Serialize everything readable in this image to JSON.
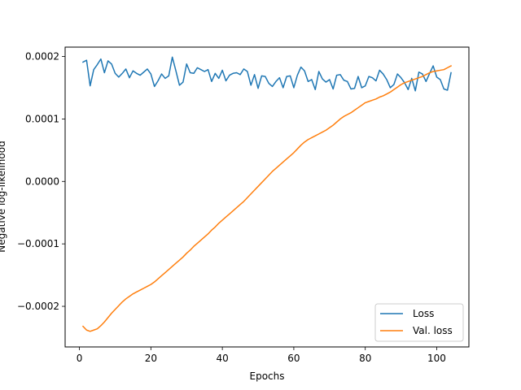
{
  "chart_data": {
    "type": "line",
    "title": "",
    "xlabel": "Epochs",
    "ylabel": "Negative log-likelihood",
    "xlim": [
      -4,
      109
    ],
    "ylim": [
      -0.000265,
      0.000215
    ],
    "xticks": [
      0,
      20,
      40,
      60,
      80,
      100
    ],
    "xtick_labels": [
      "0",
      "20",
      "40",
      "60",
      "80",
      "100"
    ],
    "yticks": [
      -0.0002,
      -0.0001,
      0.0,
      0.0001,
      0.0002
    ],
    "ytick_labels": [
      "−0.0002",
      "−0.0001",
      "0.0000",
      "0.0001",
      "0.0002"
    ],
    "grid": false,
    "legend_position": "lower-right",
    "x": [
      1,
      2,
      3,
      4,
      5,
      6,
      7,
      8,
      9,
      10,
      11,
      12,
      13,
      14,
      15,
      16,
      17,
      18,
      19,
      20,
      21,
      22,
      23,
      24,
      25,
      26,
      27,
      28,
      29,
      30,
      31,
      32,
      33,
      34,
      35,
      36,
      37,
      38,
      39,
      40,
      41,
      42,
      43,
      44,
      45,
      46,
      47,
      48,
      49,
      50,
      51,
      52,
      53,
      54,
      55,
      56,
      57,
      58,
      59,
      60,
      61,
      62,
      63,
      64,
      65,
      66,
      67,
      68,
      69,
      70,
      71,
      72,
      73,
      74,
      75,
      76,
      77,
      78,
      79,
      80,
      81,
      82,
      83,
      84,
      85,
      86,
      87,
      88,
      89,
      90,
      91,
      92,
      93,
      94,
      95,
      96,
      97,
      98,
      99,
      100,
      101,
      102,
      103,
      104
    ],
    "series": [
      {
        "name": "Loss",
        "color": "#1f77b4",
        "values": [
          0.000191,
          0.000194,
          0.000153,
          0.000179,
          0.000187,
          0.000196,
          0.000174,
          0.000193,
          0.000188,
          0.000173,
          0.000167,
          0.000173,
          0.00018,
          0.000166,
          0.000177,
          0.000173,
          0.00017,
          0.000175,
          0.00018,
          0.000172,
          0.000152,
          0.000161,
          0.000172,
          0.000165,
          0.000169,
          0.000199,
          0.000177,
          0.000154,
          0.000159,
          0.000188,
          0.000174,
          0.000173,
          0.000182,
          0.000179,
          0.000176,
          0.000179,
          0.00016,
          0.000173,
          0.000165,
          0.000178,
          0.000161,
          0.00017,
          0.000173,
          0.000174,
          0.000171,
          0.00018,
          0.000176,
          0.000154,
          0.000171,
          0.000149,
          0.000169,
          0.000168,
          0.000157,
          0.000152,
          0.00016,
          0.000166,
          0.00015,
          0.000168,
          0.000169,
          0.00015,
          0.00017,
          0.000183,
          0.000177,
          0.00016,
          0.000163,
          0.000147,
          0.000176,
          0.000164,
          0.000159,
          0.000163,
          0.000148,
          0.00017,
          0.000171,
          0.000162,
          0.00016,
          0.000148,
          0.000149,
          0.000168,
          0.00015,
          0.000153,
          0.000168,
          0.000166,
          0.000161,
          0.000178,
          0.000172,
          0.000163,
          0.00015,
          0.000155,
          0.000172,
          0.000166,
          0.000158,
          0.000147,
          0.000165,
          0.000145,
          0.000175,
          0.000172,
          0.00016,
          0.000173,
          0.000185,
          0.000167,
          0.000163,
          0.000148,
          0.000146,
          0.000174
        ]
      },
      {
        "name": "Val. loss",
        "color": "#ff7f0e",
        "values": [
          -0.000232,
          -0.000238,
          -0.00024,
          -0.000238,
          -0.000236,
          -0.000231,
          -0.000225,
          -0.000218,
          -0.000211,
          -0.000205,
          -0.000199,
          -0.000193,
          -0.000188,
          -0.000184,
          -0.00018,
          -0.000177,
          -0.000174,
          -0.000171,
          -0.000168,
          -0.000165,
          -0.000161,
          -0.000156,
          -0.000151,
          -0.000146,
          -0.000141,
          -0.000136,
          -0.000131,
          -0.000126,
          -0.000121,
          -0.000115,
          -0.00011,
          -0.000104,
          -9.9e-05,
          -9.4e-05,
          -8.9e-05,
          -8.4e-05,
          -7.8e-05,
          -7.3e-05,
          -6.7e-05,
          -6.2e-05,
          -5.7e-05,
          -5.2e-05,
          -4.7e-05,
          -4.2e-05,
          -3.7e-05,
          -3.2e-05,
          -2.6e-05,
          -2e-05,
          -1.4e-05,
          -8e-06,
          -2e-06,
          4e-06,
          1e-05,
          1.6e-05,
          2.1e-05,
          2.6e-05,
          3.1e-05,
          3.6e-05,
          4.1e-05,
          4.6e-05,
          5.2e-05,
          5.8e-05,
          6.3e-05,
          6.7e-05,
          7e-05,
          7.3e-05,
          7.6e-05,
          7.9e-05,
          8.2e-05,
          8.6e-05,
          9e-05,
          9.5e-05,
          0.0001,
          0.000104,
          0.000107,
          0.00011,
          0.000114,
          0.000118,
          0.000122,
          0.000126,
          0.000128,
          0.00013,
          0.000132,
          0.000135,
          0.000137,
          0.00014,
          0.000143,
          0.000147,
          0.000151,
          0.000155,
          0.000158,
          0.00016,
          0.000162,
          0.000164,
          0.000166,
          0.000168,
          0.000171,
          0.000174,
          0.000176,
          0.000177,
          0.000178,
          0.000179,
          0.000182,
          0.000185
        ]
      }
    ]
  }
}
